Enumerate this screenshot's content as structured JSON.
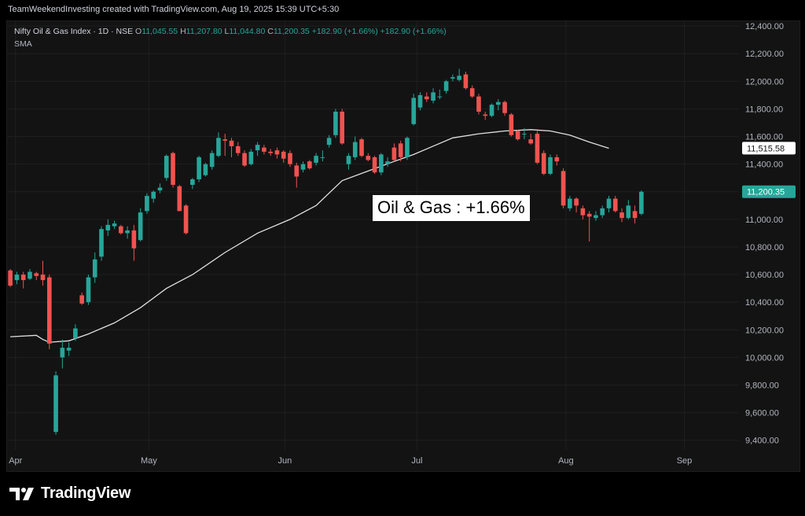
{
  "header": {
    "watermark": "TeamWeekendInvesting created with TradingView.com, Aug 19, 2025 15:39 UTC+5:30"
  },
  "legend": {
    "symbol": "Nifty Oil & Gas Index · 1D · NSE",
    "o_label": "O",
    "o_value": "11,045.55",
    "h_label": "H",
    "h_value": "11,207.80",
    "l_label": "L",
    "l_value": "11,044.80",
    "c_label": "C",
    "c_value": "11,200.35",
    "change": "+182.90 (+1.66%)",
    "change2": "+182.90 (+1.66%)",
    "indicator": "SMA"
  },
  "annotation": "Oil & Gas : +1.66%",
  "brand": {
    "name": "TradingView"
  },
  "colors": {
    "up": "#26a69a",
    "down": "#ef5350",
    "sma": "#e0e0e0",
    "background": "#131313",
    "grid": "#1f1f1f",
    "axis_text": "#b2b5be"
  },
  "chart_data": {
    "type": "candlestick",
    "y_ticks": [
      9400,
      9600,
      9800,
      10000,
      10200,
      10400,
      10600,
      10800,
      11000,
      11200,
      11400,
      11600,
      11800,
      12000,
      12200,
      12400
    ],
    "y_tick_labels": [
      "9,400.00",
      "9,600.00",
      "9,800.00",
      "10,000.00",
      "10,200.00",
      "10,400.00",
      "10,600.00",
      "10,800.00",
      "11,000.00",
      "11,200.00",
      "11,400.00",
      "11,600.00",
      "11,800.00",
      "12,000.00",
      "12,200.00",
      "12,400.00"
    ],
    "ylim": [
      9330,
      12435
    ],
    "x_labels": [
      {
        "label": "Apr",
        "index": 0.8
      },
      {
        "label": "May",
        "index": 21.3
      },
      {
        "label": "Jun",
        "index": 42.2
      },
      {
        "label": "Jul",
        "index": 62.5
      },
      {
        "label": "Aug",
        "index": 85.4
      },
      {
        "label": "Sep",
        "index": 103.6
      }
    ],
    "xlim": [
      -0.5,
      112
    ],
    "price_labels": [
      {
        "value": 11515.58,
        "text": "11,515.58",
        "style": "sma"
      },
      {
        "value": 11200.35,
        "text": "11,200.35",
        "style": "last"
      }
    ],
    "sma": [
      [
        0,
        10150
      ],
      [
        4,
        10160
      ],
      [
        5,
        10130
      ],
      [
        6,
        10110
      ],
      [
        9,
        10120
      ],
      [
        12,
        10170
      ],
      [
        16,
        10250
      ],
      [
        20,
        10360
      ],
      [
        24,
        10500
      ],
      [
        28,
        10600
      ],
      [
        33,
        10760
      ],
      [
        38,
        10900
      ],
      [
        43,
        11000
      ],
      [
        47,
        11100
      ],
      [
        51,
        11280
      ],
      [
        55,
        11350
      ],
      [
        59,
        11420
      ],
      [
        62,
        11470
      ],
      [
        65,
        11530
      ],
      [
        68,
        11590
      ],
      [
        72,
        11620
      ],
      [
        76,
        11640
      ],
      [
        80,
        11650
      ],
      [
        83,
        11640
      ],
      [
        86,
        11610
      ],
      [
        89,
        11560
      ],
      [
        92,
        11515
      ]
    ],
    "candles": [
      [
        10630,
        10520,
        10640,
        10510
      ],
      [
        10560,
        10600,
        10620,
        10530
      ],
      [
        10600,
        10560,
        10620,
        10500
      ],
      [
        10570,
        10620,
        10640,
        10560
      ],
      [
        10610,
        10590,
        10620,
        10560
      ],
      [
        10600,
        10560,
        10700,
        10520
      ],
      [
        10580,
        10100,
        10600,
        10060
      ],
      [
        9460,
        9870,
        9900,
        9440
      ],
      [
        10000,
        10070,
        10130,
        9920
      ],
      [
        10050,
        10070,
        10110,
        10010
      ],
      [
        10140,
        10210,
        10240,
        10120
      ],
      [
        10450,
        10390,
        10470,
        10380
      ],
      [
        10400,
        10580,
        10600,
        10380
      ],
      [
        10580,
        10710,
        10760,
        10540
      ],
      [
        10730,
        10930,
        10950,
        10700
      ],
      [
        10920,
        10960,
        11000,
        10880
      ],
      [
        10950,
        10970,
        10990,
        10930
      ],
      [
        10950,
        10900,
        10960,
        10890
      ],
      [
        10900,
        10920,
        10950,
        10860
      ],
      [
        10920,
        10790,
        10960,
        10700
      ],
      [
        10850,
        11050,
        11080,
        10840
      ],
      [
        11060,
        11170,
        11190,
        11040
      ],
      [
        11150,
        11200,
        11210,
        11120
      ],
      [
        11210,
        11230,
        11260,
        11190
      ],
      [
        11300,
        11460,
        11470,
        11280
      ],
      [
        11480,
        11250,
        11490,
        11230
      ],
      [
        11240,
        11060,
        11250,
        11060
      ],
      [
        11100,
        10900,
        11110,
        10890
      ],
      [
        11250,
        11290,
        11300,
        11220
      ],
      [
        11290,
        11450,
        11460,
        11270
      ],
      [
        11320,
        11400,
        11410,
        11310
      ],
      [
        11380,
        11480,
        11500,
        11360
      ],
      [
        11460,
        11590,
        11630,
        11450
      ],
      [
        11580,
        11570,
        11620,
        11460
      ],
      [
        11570,
        11530,
        11590,
        11450
      ],
      [
        11530,
        11480,
        11560,
        11460
      ],
      [
        11480,
        11390,
        11500,
        11380
      ],
      [
        11400,
        11490,
        11510,
        11390
      ],
      [
        11500,
        11540,
        11560,
        11460
      ],
      [
        11520,
        11490,
        11540,
        11470
      ],
      [
        11490,
        11480,
        11510,
        11460
      ],
      [
        11500,
        11470,
        11520,
        11440
      ],
      [
        11490,
        11440,
        11500,
        11410
      ],
      [
        11480,
        11400,
        11500,
        11380
      ],
      [
        11390,
        11310,
        11410,
        11230
      ],
      [
        11360,
        11400,
        11420,
        11340
      ],
      [
        11420,
        11370,
        11430,
        11360
      ],
      [
        11410,
        11460,
        11480,
        11390
      ],
      [
        11450,
        11450,
        11500,
        11420
      ],
      [
        11540,
        11590,
        11610,
        11520
      ],
      [
        11610,
        11780,
        11800,
        11590
      ],
      [
        11780,
        11550,
        11800,
        11540
      ],
      [
        11400,
        11460,
        11480,
        11360
      ],
      [
        11450,
        11560,
        11600,
        11430
      ],
      [
        11580,
        11460,
        11590,
        11450
      ],
      [
        11460,
        11430,
        11480,
        11420
      ],
      [
        11450,
        11340,
        11460,
        11330
      ],
      [
        11340,
        11470,
        11480,
        11320
      ],
      [
        11400,
        11420,
        11450,
        11380
      ],
      [
        11520,
        11430,
        11550,
        11420
      ],
      [
        11550,
        11450,
        11570,
        11420
      ],
      [
        11450,
        11590,
        11600,
        11430
      ],
      [
        11690,
        11880,
        11910,
        11680
      ],
      [
        11810,
        11900,
        11920,
        11790
      ],
      [
        11890,
        11870,
        11920,
        11850
      ],
      [
        11860,
        11920,
        11950,
        11840
      ],
      [
        11890,
        11890,
        11940,
        11870
      ],
      [
        11930,
        12000,
        12010,
        11910
      ],
      [
        12020,
        12030,
        12050,
        12000
      ],
      [
        12010,
        12040,
        12090,
        12000
      ],
      [
        12050,
        11950,
        12070,
        11940
      ],
      [
        11950,
        11890,
        11970,
        11880
      ],
      [
        11890,
        11780,
        11910,
        11760
      ],
      [
        11760,
        11750,
        11780,
        11720
      ],
      [
        11750,
        11830,
        11840,
        11740
      ],
      [
        11830,
        11850,
        11870,
        11790
      ],
      [
        11850,
        11770,
        11860,
        11750
      ],
      [
        11760,
        11610,
        11770,
        11600
      ],
      [
        11640,
        11580,
        11650,
        11570
      ],
      [
        11620,
        11620,
        11660,
        11580
      ],
      [
        11580,
        11550,
        11620,
        11540
      ],
      [
        11620,
        11410,
        11640,
        11400
      ],
      [
        11480,
        11330,
        11500,
        11320
      ],
      [
        11330,
        11450,
        11470,
        11320
      ],
      [
        11450,
        11420,
        11470,
        11390
      ],
      [
        11350,
        11100,
        11370,
        11080
      ],
      [
        11080,
        11150,
        11170,
        11060
      ],
      [
        11150,
        11100,
        11160,
        11050
      ],
      [
        11080,
        11030,
        11100,
        11000
      ],
      [
        11040,
        11020,
        11060,
        10840
      ],
      [
        11010,
        11030,
        11060,
        10990
      ],
      [
        11030,
        11080,
        11100,
        11010
      ],
      [
        11080,
        11150,
        11170,
        11050
      ],
      [
        11150,
        11060,
        11170,
        11050
      ],
      [
        11050,
        11010,
        11080,
        10980
      ],
      [
        11010,
        11100,
        11140,
        11000
      ],
      [
        11060,
        11010,
        11100,
        10970
      ],
      [
        11040,
        11200,
        11210,
        11030
      ]
    ]
  }
}
